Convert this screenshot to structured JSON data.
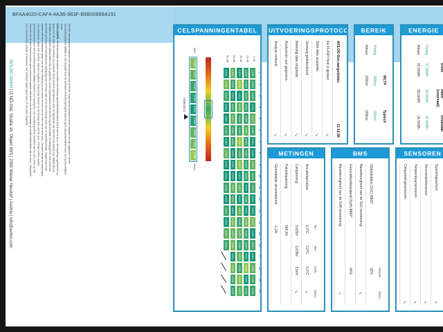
{
  "document_id": "BFAA4020-CAF4-4A3B-983F-B9B00899A191",
  "disclaimer": {
    "note": "*De hier weergegeven waarden zijn niet bepaald door AVILOO, maar komen overeen met de waarden die zijn uitgelezen uit het accubeheersysteem (BMS) en zijn bepaald door de fabrikant. AVILOO aanvaardt daarom geen aansprakelijkheid voor de nauwkeurigheid ervan.",
    "label": "DISCLAIMER:",
    "text": "Het testresultaat omvat de momenteel beschikbare gezondheidstoestand (SoH) van de accu. De bepaling is gebaseerd op gegevens die door het voertuig zijn verstrekt. Deze worden geëvalueerd door de algoritmen van AVILOO met behulp van statistische en analytische modellen. Manipulaties van de gegevens en de regelbaarheid leidt tot een onjuist resultaat. De aangegeven SoH heeft een technisch geïndiceerd fluctuatiebereik (afwijking) van niet meer dan 2% in het minimale SoH van de tolerantiemarge. Opgemerkt moet worden dat deze tolerantie geldt voor de SoH-bepaling op cel-niveau en niet voor de SoH van de hele accu. Dit komt omdat de spanningen van individuele cellen kan variëren, wat een negatieve invloed kan hebben op de huidige SoH van de accu. Dit kan echter worden gecompenseerd door het accubeheersysteem (BMS) of tijdens een laadcyclus. Het resultaat geeft de toestand van de accu weer op het moment van de test. Hieruit kunnen geen conclusies worden getrokken over de toekomstige gezondheidstoestand van de accu. Uitspraken over mechanische schade of invloeden van buitenaf maken geen deel uit van deze diagnose."
  },
  "footer": {
    "company": "AVILOO GmbH",
    "address": " | IZ NÖ-Süd, Straße 16, Objekt 69/5 | 2355 Wiener Neudorf | Austria | info@aviloo.com"
  },
  "cell_table": {
    "title": "CELSPANNINGENTABEL",
    "columns": [
      "1",
      "2",
      "3",
      "4",
      "5",
      "6",
      "7",
      "8",
      "9",
      "10",
      "11",
      "12",
      "13",
      "14",
      "15",
      "16",
      "17",
      "18",
      "19",
      "20"
    ],
    "rows": [
      {
        "label": "1-20",
        "values": [
          "3.629",
          "3.633",
          "3.629",
          "3.631",
          "3.627",
          "3.633",
          "3.631",
          "3.631",
          "3.627",
          "3.633",
          "3.629",
          "3.631",
          "3.631",
          "3.626",
          "3.631",
          "3.633",
          "3.631",
          "3.635",
          "3.629",
          "3.633"
        ]
      },
      {
        "label": "21-40",
        "values": [
          "3.629",
          "3.633",
          "3.629",
          "3.633",
          "3.629",
          "3.635",
          "3.629",
          "3.633",
          "3.629",
          "3.633",
          "3.631",
          "3.633",
          "3.631",
          "3.626",
          "3.629",
          "3.633",
          "3.631",
          "3.638",
          "3.631",
          "3.633"
        ]
      },
      {
        "label": "41-60",
        "values": [
          "3.631",
          "3.638",
          "3.631",
          "3.635",
          "3.633",
          "3.633",
          "3.638",
          "3.629",
          "3.625",
          "3.631",
          "3.627",
          "3.631",
          "3.627",
          "3.629",
          "3.627",
          "3.629",
          "3.627",
          "3.633",
          "3.625",
          "3.627"
        ]
      },
      {
        "label": "61-80",
        "values": [
          "3.627",
          "3.629",
          "3.631",
          "3.633",
          "3.627",
          "3.633",
          "3.629",
          "3.631",
          "3.631",
          "3.631",
          "3.627",
          "3.629",
          "3.631",
          "3.626",
          "3.627",
          "3.626",
          "3.631",
          "3.626",
          "3.629",
          "3.633"
        ]
      },
      {
        "label": "81-96",
        "values": [
          "3.631",
          "3.626",
          "3.629",
          "3.631",
          "3.631",
          "3.633",
          "3.631",
          "3.635",
          "3.631",
          "3.631",
          "3.629",
          "3.631",
          "3.629",
          "3.631",
          "3.627",
          "3.633",
          "",
          "",
          "",
          ""
        ]
      }
    ],
    "legend": {
      "min_label": "MIN.",
      "max_label": "MAX.",
      "avg_label": "GEMIDDELD",
      "values": [
        "3.625",
        "3.627",
        "3.629",
        "3.630",
        "3.631",
        "3.632",
        "3.635",
        "3.636",
        "3.638"
      ]
    }
  },
  "protocol": {
    "title": "UITVOERINGSPROTOCOL",
    "items": [
      {
        "text": "AVILOO Box aangesloten.",
        "status": "11:12:36",
        "bold": true
      },
      {
        "text": "De FLASH Test is gestart.",
        "status": "✓"
      },
      {
        "text": "Start data acquisitie.",
        "status": "✓"
      },
      {
        "text": "Voertuig gedetecteerd.",
        "status": "✓"
      },
      {
        "text": "Beëindig data acquisitie.",
        "status": "✓"
      },
      {
        "text": "Analyseren van gegevens.",
        "status": "✓"
      },
      {
        "text": "Analyse voltooid.",
        "status": "✓"
      }
    ]
  },
  "range": {
    "title": "BEREIK",
    "headers": [
      "",
      "WLTP",
      "Typisch"
    ],
    "rows": [
      {
        "label": "Huidig:",
        "values": [
          "180km",
          "150km"
        ]
      },
      {
        "label": "Nieuw:",
        "values": [
          "200km",
          "159km"
        ]
      }
    ]
  },
  "energy": {
    "title": "ENERGIE",
    "headers": [
      "",
      "Bruto",
      "Netto (nominaal)",
      "Bruikbaar"
    ],
    "rows": [
      {
        "label": "Huidig:",
        "values": [
          "37,0kWh",
          "36,9kWh",
          "32,6kWh"
        ]
      },
      {
        "label": "Nieuw:",
        "values": [
          "40,0kWh",
          "39,0kWh",
          "34,5kWh"
        ]
      }
    ]
  },
  "measurements": {
    "title": "METINGEN",
    "headers": [
      "Min.",
      "Max.",
      "Delta",
      "Status"
    ],
    "rows": [
      {
        "label": "Accutemperatuur",
        "values": [
          "2,0°C",
          "2,0°C",
          "0,0°C",
          "✓"
        ]
      },
      {
        "label": "Celspanning",
        "values": [
          "3,625V",
          "3,638V",
          "13mV",
          "✓"
        ]
      },
      {
        "label": "Pakketspanning",
        "values": [
          "348,6V",
          "",
          "",
          ""
        ]
      },
      {
        "label": "Gemiddelde stroomsterkte",
        "values": [
          "-1,1A",
          "",
          "",
          ""
        ]
      }
    ]
  },
  "bms": {
    "title": "BMS",
    "headers": [
      "Waarde",
      "Status"
    ],
    "rows": [
      {
        "label": "Oplaadstatus (SoC) BMS*:",
        "values": [
          "32%",
          ""
        ]
      },
      {
        "label": "Nauwkeurigheid van de SoC-berekening:",
        "values": [
          "",
          "✓"
        ]
      },
      {
        "label": "Gezondheidstoestand (SoH) BMS*:",
        "values": [
          "94%",
          ""
        ]
      },
      {
        "label": "Nauwkeurigheid van de SoH-berekening:",
        "values": [
          "",
          "✓"
        ]
      }
    ]
  },
  "sensors": {
    "title": "SENSOREN",
    "items": [
      {
        "text": "Spanningssensor",
        "status": "✓"
      },
      {
        "text": "Stroomsterktesensor",
        "status": "✓"
      },
      {
        "text": "Temperatuursensoren",
        "status": "✓"
      },
      {
        "text": "Celspanningssensoren",
        "status": "✓"
      }
    ]
  },
  "colors": {
    "header_blue": "#1e9ad6",
    "band_blue": "#a9d9f0",
    "teal": "#3aa9a9",
    "cell_green": "#1e9a7a"
  }
}
